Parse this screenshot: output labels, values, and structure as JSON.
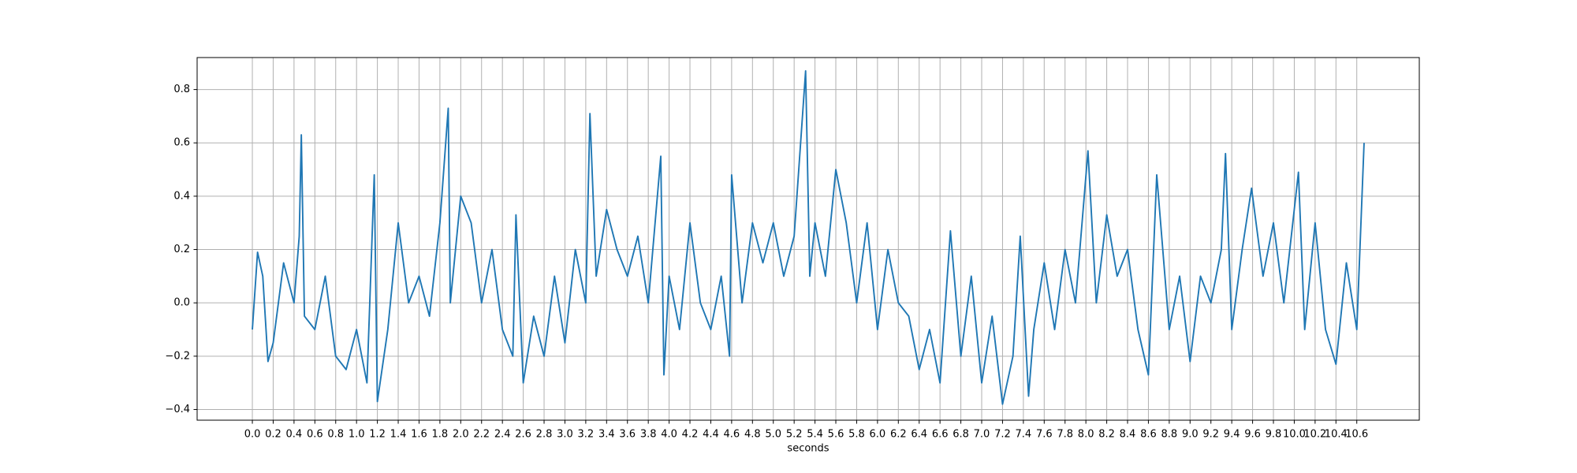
{
  "chart_data": {
    "type": "line",
    "x_label": "seconds",
    "x": [
      0.0,
      0.05,
      0.1,
      0.15,
      0.2,
      0.3,
      0.4,
      0.45,
      0.47,
      0.5,
      0.6,
      0.7,
      0.8,
      0.9,
      1.0,
      1.1,
      1.17,
      1.2,
      1.3,
      1.4,
      1.5,
      1.6,
      1.7,
      1.8,
      1.88,
      1.9,
      2.0,
      2.1,
      2.2,
      2.3,
      2.4,
      2.5,
      2.53,
      2.6,
      2.7,
      2.8,
      2.9,
      3.0,
      3.1,
      3.2,
      3.24,
      3.3,
      3.4,
      3.5,
      3.6,
      3.7,
      3.8,
      3.92,
      3.95,
      4.0,
      4.1,
      4.2,
      4.3,
      4.4,
      4.5,
      4.58,
      4.6,
      4.7,
      4.8,
      4.9,
      5.0,
      5.1,
      5.2,
      5.31,
      5.35,
      5.4,
      5.5,
      5.6,
      5.7,
      5.8,
      5.9,
      6.0,
      6.1,
      6.2,
      6.3,
      6.4,
      6.5,
      6.6,
      6.7,
      6.8,
      6.9,
      7.0,
      7.1,
      7.2,
      7.3,
      7.37,
      7.45,
      7.5,
      7.6,
      7.7,
      7.8,
      7.9,
      8.02,
      8.1,
      8.2,
      8.3,
      8.4,
      8.5,
      8.6,
      8.68,
      8.8,
      8.9,
      9.0,
      9.1,
      9.2,
      9.3,
      9.34,
      9.4,
      9.5,
      9.59,
      9.7,
      9.8,
      9.9,
      10.04,
      10.1,
      10.2,
      10.3,
      10.4,
      10.5,
      10.6,
      10.67
    ],
    "series": [
      {
        "color": "#1f77b4",
        "values": [
          -0.1,
          0.19,
          0.1,
          -0.22,
          -0.15,
          0.15,
          0.0,
          0.25,
          0.63,
          -0.05,
          -0.1,
          0.1,
          -0.2,
          -0.25,
          -0.1,
          -0.3,
          0.48,
          -0.37,
          -0.1,
          0.3,
          0.0,
          0.1,
          -0.05,
          0.3,
          0.73,
          0.0,
          0.4,
          0.3,
          0.0,
          0.2,
          -0.1,
          -0.2,
          0.33,
          -0.3,
          -0.05,
          -0.2,
          0.1,
          -0.15,
          0.2,
          0.0,
          0.71,
          0.1,
          0.35,
          0.2,
          0.1,
          0.25,
          0.0,
          0.55,
          -0.27,
          0.1,
          -0.1,
          0.3,
          0.0,
          -0.1,
          0.1,
          -0.2,
          0.48,
          0.0,
          0.3,
          0.15,
          0.3,
          0.1,
          0.25,
          0.87,
          0.1,
          0.3,
          0.1,
          0.5,
          0.3,
          0.0,
          0.3,
          -0.1,
          0.2,
          0.0,
          -0.05,
          -0.25,
          -0.1,
          -0.3,
          0.27,
          -0.2,
          0.1,
          -0.3,
          -0.05,
          -0.38,
          -0.2,
          0.25,
          -0.35,
          -0.1,
          0.15,
          -0.1,
          0.2,
          0.0,
          0.57,
          0.0,
          0.33,
          0.1,
          0.2,
          -0.1,
          -0.27,
          0.48,
          -0.1,
          0.1,
          -0.22,
          0.1,
          0.0,
          0.2,
          0.56,
          -0.1,
          0.2,
          0.43,
          0.1,
          0.3,
          0.0,
          0.49,
          -0.1,
          0.3,
          -0.1,
          -0.23,
          0.15,
          -0.1,
          0.6
        ]
      }
    ],
    "xlim": [
      -0.53,
      11.2
    ],
    "ylim": [
      -0.44,
      0.92
    ],
    "xticks": [
      {
        "value": 0,
        "label": "0.0"
      },
      0.2,
      0.4,
      0.6,
      0.8,
      {
        "value": 1,
        "label": "1.0"
      },
      1.2,
      1.4,
      1.6,
      1.8,
      {
        "value": 2,
        "label": "2.0"
      },
      2.2,
      2.4,
      2.6,
      2.8,
      {
        "value": 3,
        "label": "3.0"
      },
      3.2,
      3.4,
      3.6,
      3.8,
      {
        "value": 4,
        "label": "4.0"
      },
      4.2,
      4.4,
      4.6,
      4.8,
      {
        "value": 5,
        "label": "5.0"
      },
      5.2,
      5.4,
      5.6,
      5.8,
      {
        "value": 6,
        "label": "6.0"
      },
      6.2,
      6.4,
      6.6,
      6.8,
      {
        "value": 7,
        "label": "7.0"
      },
      7.2,
      7.4,
      7.6,
      7.8,
      {
        "value": 8,
        "label": "8.0"
      },
      8.2,
      8.4,
      8.6,
      8.8,
      {
        "value": 9,
        "label": "9.0"
      },
      9.2,
      9.4,
      9.6,
      9.8,
      {
        "value": 10,
        "label": "10.0"
      },
      10.2,
      10.4,
      10.6
    ],
    "yticks": [
      {
        "value": -0.4,
        "label": "−0.4"
      },
      {
        "value": -0.2,
        "label": "−0.2"
      },
      {
        "value": 0,
        "label": "0.0"
      },
      0.2,
      0.4,
      0.6,
      0.8
    ],
    "grid": true
  }
}
